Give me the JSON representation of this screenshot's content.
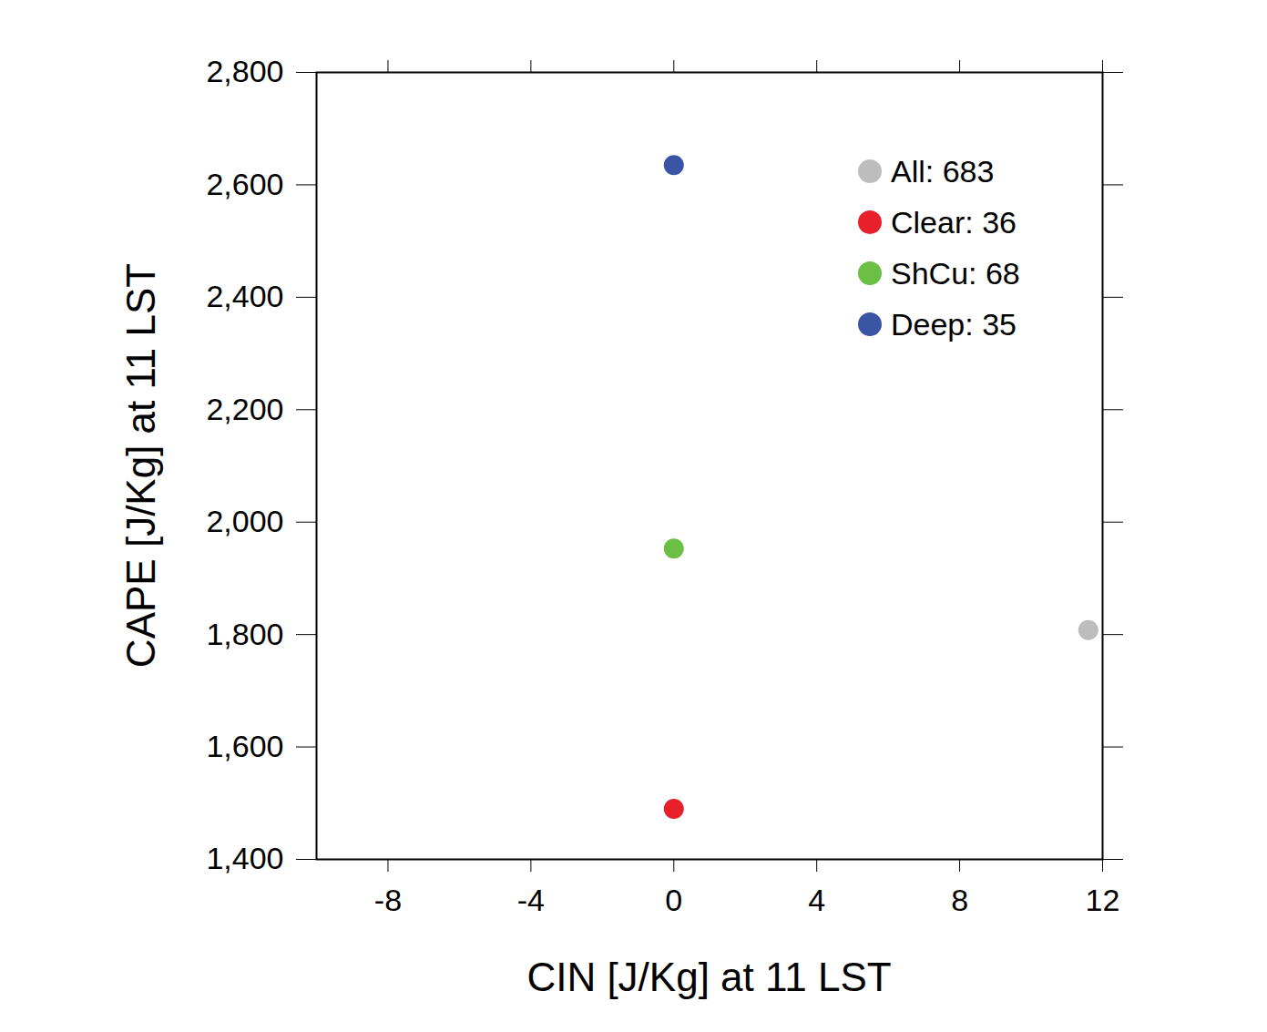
{
  "chart_data": {
    "type": "scatter",
    "xlabel": "CIN [J/Kg] at 11 LST",
    "ylabel": "CAPE [J/Kg] at 11 LST",
    "xlim": [
      -10,
      12
    ],
    "ylim": [
      1400,
      2800
    ],
    "xticks": [
      -8,
      -4,
      0,
      4,
      8,
      12
    ],
    "yticks": [
      1400,
      1600,
      1800,
      2000,
      2200,
      2400,
      2600,
      2800
    ],
    "legend": "top-right",
    "series": [
      {
        "name": "All: 683",
        "color": "#bdbdbd",
        "marker": "circle",
        "x": [
          11.6
        ],
        "y": [
          1808
        ]
      },
      {
        "name": "Clear: 36",
        "color": "#e8202a",
        "marker": "circle",
        "x": [
          0
        ],
        "y": [
          1490
        ]
      },
      {
        "name": "ShCu: 68",
        "color": "#6bbf45",
        "marker": "circle",
        "x": [
          0
        ],
        "y": [
          1953
        ]
      },
      {
        "name": "Deep: 35",
        "color": "#3a55a4",
        "marker": "circle",
        "x": [
          0
        ],
        "y": [
          2635
        ]
      }
    ]
  }
}
